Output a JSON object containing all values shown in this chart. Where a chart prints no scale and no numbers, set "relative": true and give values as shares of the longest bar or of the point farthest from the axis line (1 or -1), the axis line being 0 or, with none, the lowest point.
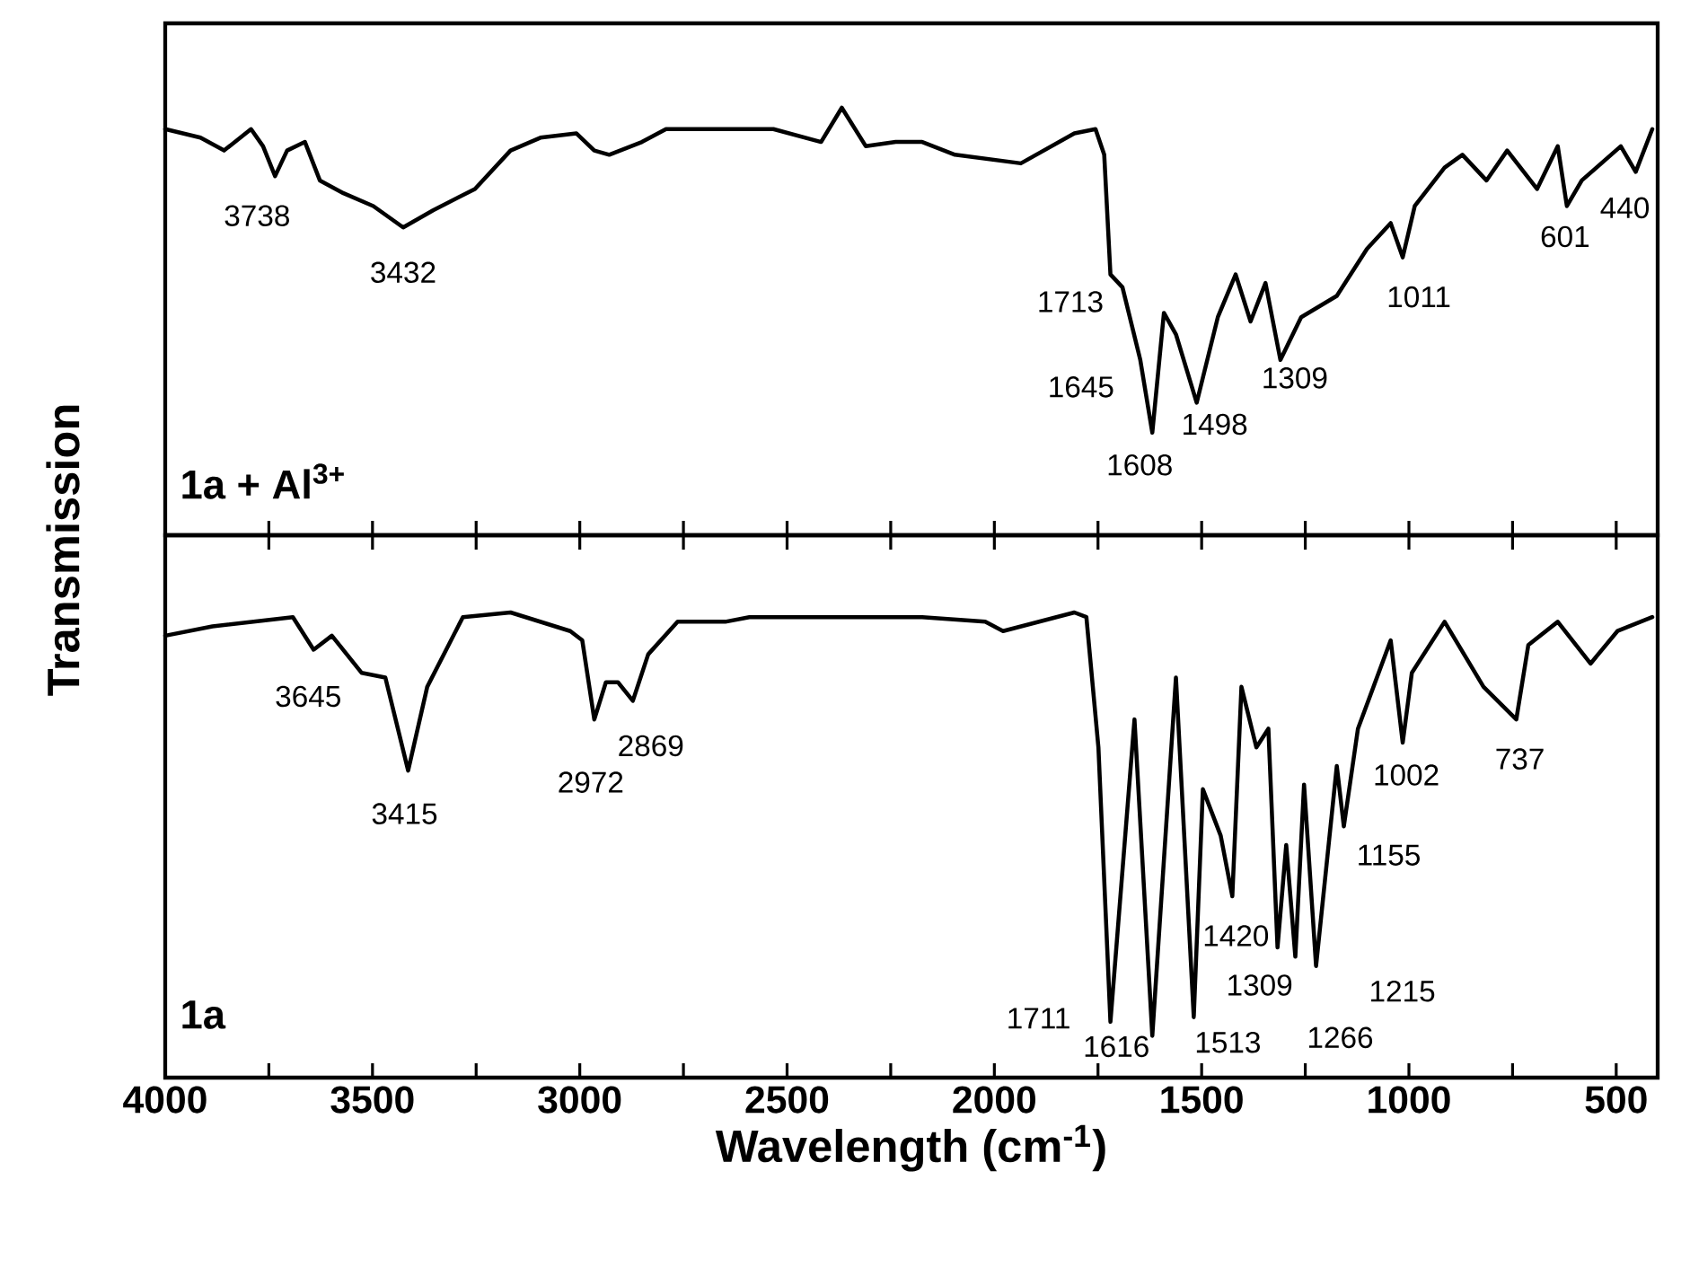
{
  "chart_data": [
    {
      "type": "line",
      "relative": true,
      "title": "1a + Al$^{3+}$",
      "ylabel": "Transmission",
      "tick_labels": false,
      "xlim": [
        4000,
        400
      ],
      "xticks": [
        4000,
        3500,
        3000,
        2500,
        2000,
        1500,
        1000,
        500
      ],
      "series": [
        {
          "color": "#000000",
          "x": [
            4000,
            3915,
            3858,
            3793,
            3764,
            3735,
            3706,
            3663,
            3627,
            3570,
            3498,
            3426,
            3354,
            3253,
            3167,
            3095,
            3008,
            2965,
            2929,
            2850,
            2792,
            2533,
            2418,
            2368,
            2310,
            2238,
            2174,
            2095,
            1936,
            1807,
            1756,
            1735,
            1720,
            1691,
            1648,
            1619,
            1591,
            1562,
            1512,
            1461,
            1418,
            1382,
            1346,
            1310,
            1260,
            1174,
            1101,
            1044,
            1015,
            986,
            914,
            871,
            813,
            763,
            691,
            641,
            619,
            583,
            489,
            453,
            413
          ],
          "values": [
            0.95,
            0.93,
            0.9,
            0.95,
            0.91,
            0.84,
            0.9,
            0.92,
            0.83,
            0.8,
            0.77,
            0.72,
            0.76,
            0.81,
            0.9,
            0.93,
            0.94,
            0.9,
            0.89,
            0.92,
            0.95,
            0.95,
            0.92,
            1,
            0.91,
            0.92,
            0.92,
            0.89,
            0.87,
            0.94,
            0.95,
            0.89,
            0.61,
            0.58,
            0.41,
            0.24,
            0.52,
            0.47,
            0.31,
            0.51,
            0.61,
            0.5,
            0.59,
            0.41,
            0.51,
            0.56,
            0.67,
            0.73,
            0.65,
            0.77,
            0.86,
            0.89,
            0.83,
            0.9,
            0.81,
            0.91,
            0.77,
            0.83,
            0.91,
            0.85,
            0.95
          ]
        }
      ],
      "annotations": [
        {
          "text": "3738",
          "x": 3735,
          "y": 0.84
        },
        {
          "text": "3432",
          "x": 3426,
          "y": 0.72
        },
        {
          "text": "1713",
          "x": 1691,
          "y": 0.58
        },
        {
          "text": "1645",
          "x": 1648,
          "y": 0.41
        },
        {
          "text": "1608",
          "x": 1619,
          "y": 0.24
        },
        {
          "text": "1498",
          "x": 1512,
          "y": 0.31
        },
        {
          "text": "1309",
          "x": 1310,
          "y": 0.41
        },
        {
          "text": "1011",
          "x": 1015,
          "y": 0.65
        },
        {
          "text": "601",
          "x": 619,
          "y": 0.77
        },
        {
          "text": "440",
          "x": 453,
          "y": 0.85
        }
      ]
    },
    {
      "type": "line",
      "relative": true,
      "title": "1a",
      "xlabel": "Wavelength (cm$^{-1}$)",
      "xlim": [
        4000,
        400
      ],
      "xticks": [
        4000,
        3500,
        3000,
        2500,
        2000,
        1500,
        1000,
        500
      ],
      "series": [
        {
          "color": "#000000",
          "x": [
            4000,
            3886,
            3692,
            3642,
            3598,
            3526,
            3469,
            3414,
            3368,
            3282,
            3167,
            3023,
            2994,
            2965,
            2937,
            2908,
            2872,
            2835,
            2764,
            2649,
            2591,
            2174,
            2022,
            1979,
            1807,
            1778,
            1749,
            1720,
            1662,
            1619,
            1562,
            1519,
            1497,
            1454,
            1426,
            1404,
            1368,
            1339,
            1317,
            1296,
            1274,
            1253,
            1224,
            1174,
            1157,
            1123,
            1044,
            1015,
            993,
            914,
            820,
            741,
            712,
            641,
            562,
            497,
            413
          ],
          "values": [
            0.95,
            0.97,
            0.99,
            0.92,
            0.95,
            0.87,
            0.86,
            0.66,
            0.84,
            0.99,
            1,
            0.96,
            0.94,
            0.77,
            0.85,
            0.85,
            0.81,
            0.91,
            0.98,
            0.98,
            0.99,
            0.99,
            0.98,
            0.96,
            1,
            0.99,
            0.71,
            0.12,
            0.77,
            0.09,
            0.86,
            0.13,
            0.62,
            0.52,
            0.39,
            0.84,
            0.71,
            0.75,
            0.28,
            0.5,
            0.26,
            0.63,
            0.24,
            0.67,
            0.54,
            0.75,
            0.94,
            0.72,
            0.87,
            0.98,
            0.84,
            0.77,
            0.93,
            0.98,
            0.89,
            0.96,
            0.99
          ]
        }
      ],
      "annotations": [
        {
          "text": "3645",
          "x": 3642,
          "y": 0.92
        },
        {
          "text": "3415",
          "x": 3414,
          "y": 0.66
        },
        {
          "text": "2972",
          "x": 2965,
          "y": 0.77
        },
        {
          "text": "2869",
          "x": 2872,
          "y": 0.81
        },
        {
          "text": "1711",
          "x": 1720,
          "y": 0.12
        },
        {
          "text": "1616",
          "x": 1619,
          "y": 0.09
        },
        {
          "text": "1513",
          "x": 1519,
          "y": 0.13
        },
        {
          "text": "1420",
          "x": 1426,
          "y": 0.39
        },
        {
          "text": "1309",
          "x": 1317,
          "y": 0.28
        },
        {
          "text": "1266",
          "x": 1274,
          "y": 0.26
        },
        {
          "text": "1215",
          "x": 1224,
          "y": 0.24
        },
        {
          "text": "1155",
          "x": 1157,
          "y": 0.54
        },
        {
          "text": "1002",
          "x": 1015,
          "y": 0.72
        },
        {
          "text": "737",
          "x": 741,
          "y": 0.77
        }
      ]
    }
  ]
}
